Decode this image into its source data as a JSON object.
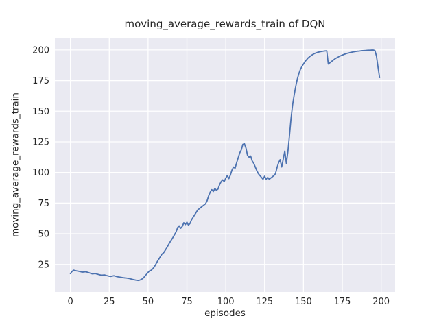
{
  "chart_data": {
    "type": "line",
    "title": "moving_average_rewards_train of DQN",
    "xlabel": "episodes",
    "ylabel": "moving_average_rewards_train",
    "x_ticks": [
      0,
      25,
      50,
      75,
      100,
      125,
      150,
      175,
      200
    ],
    "y_ticks": [
      25,
      50,
      75,
      100,
      125,
      150,
      175,
      200
    ],
    "xlim": [
      -10,
      209
    ],
    "ylim": [
      2.5,
      210
    ],
    "grid": true,
    "legend_position": "none",
    "colors": {
      "figure_bg": "#ffffff",
      "plot_bg": "#eaeaf2",
      "grid": "#ffffff",
      "text": "#262626",
      "line": "#4c72b0"
    },
    "series": [
      {
        "name": "DQN",
        "color": "#4c72b0",
        "x_start": 0,
        "x_step": 1,
        "values": [
          17.5,
          19.2,
          20.3,
          20.0,
          19.7,
          19.5,
          19.2,
          18.9,
          18.7,
          18.9,
          19.0,
          18.6,
          18.2,
          17.7,
          17.3,
          17.4,
          17.6,
          17.2,
          16.8,
          16.5,
          16.2,
          16.3,
          16.4,
          16.0,
          15.7,
          15.4,
          15.2,
          15.5,
          15.8,
          15.4,
          15.0,
          14.8,
          14.6,
          14.4,
          14.2,
          14.0,
          13.9,
          13.7,
          13.5,
          13.1,
          12.8,
          12.5,
          12.2,
          12.0,
          11.9,
          12.4,
          13.0,
          14.0,
          15.5,
          17.0,
          18.5,
          19.8,
          20.2,
          21.5,
          23.0,
          25.2,
          27.5,
          29.5,
          31.5,
          33.5,
          34.5,
          36.5,
          38.5,
          40.8,
          43.0,
          45.0,
          47.0,
          49.2,
          51.5,
          55.0,
          56.5,
          54.5,
          56.0,
          59.0,
          57.5,
          59.5,
          57.0,
          58.5,
          61.5,
          63.5,
          65.5,
          67.5,
          69.5,
          70.5,
          71.5,
          72.5,
          73.5,
          74.5,
          77.0,
          81.0,
          84.0,
          86.0,
          84.5,
          87.0,
          85.5,
          86.5,
          90.0,
          92.5,
          94.0,
          92.5,
          95.5,
          97.5,
          95.0,
          98.0,
          102.0,
          104.5,
          103.5,
          108.0,
          112.0,
          116.0,
          118.5,
          123.0,
          123.5,
          120.0,
          114.0,
          112.5,
          113.5,
          109.5,
          107.5,
          104.5,
          101.5,
          99.0,
          97.5,
          96.0,
          94.5,
          97.0,
          94.5,
          96.0,
          94.5,
          95.5,
          96.5,
          97.5,
          99.0,
          104.0,
          108.0,
          110.5,
          104.5,
          111.0,
          117.5,
          107.5,
          117.0,
          130.0,
          144.0,
          155.0,
          163.0,
          170.0,
          176.0,
          180.5,
          184.0,
          186.5,
          188.5,
          190.5,
          192.0,
          193.5,
          194.5,
          195.5,
          196.3,
          197.0,
          197.5,
          198.0,
          198.3,
          198.6,
          198.8,
          199.0,
          199.2,
          199.3,
          188.5,
          189.5,
          190.5,
          191.5,
          192.5,
          193.3,
          194.0,
          194.7,
          195.3,
          195.8,
          196.3,
          196.8,
          197.2,
          197.5,
          197.8,
          198.1,
          198.4,
          198.6,
          198.8,
          199.0,
          199.1,
          199.3,
          199.4,
          199.5,
          199.6,
          199.7,
          199.8,
          199.8,
          199.9,
          199.9,
          199.5,
          195.0,
          186.0,
          177.5
        ]
      }
    ]
  }
}
